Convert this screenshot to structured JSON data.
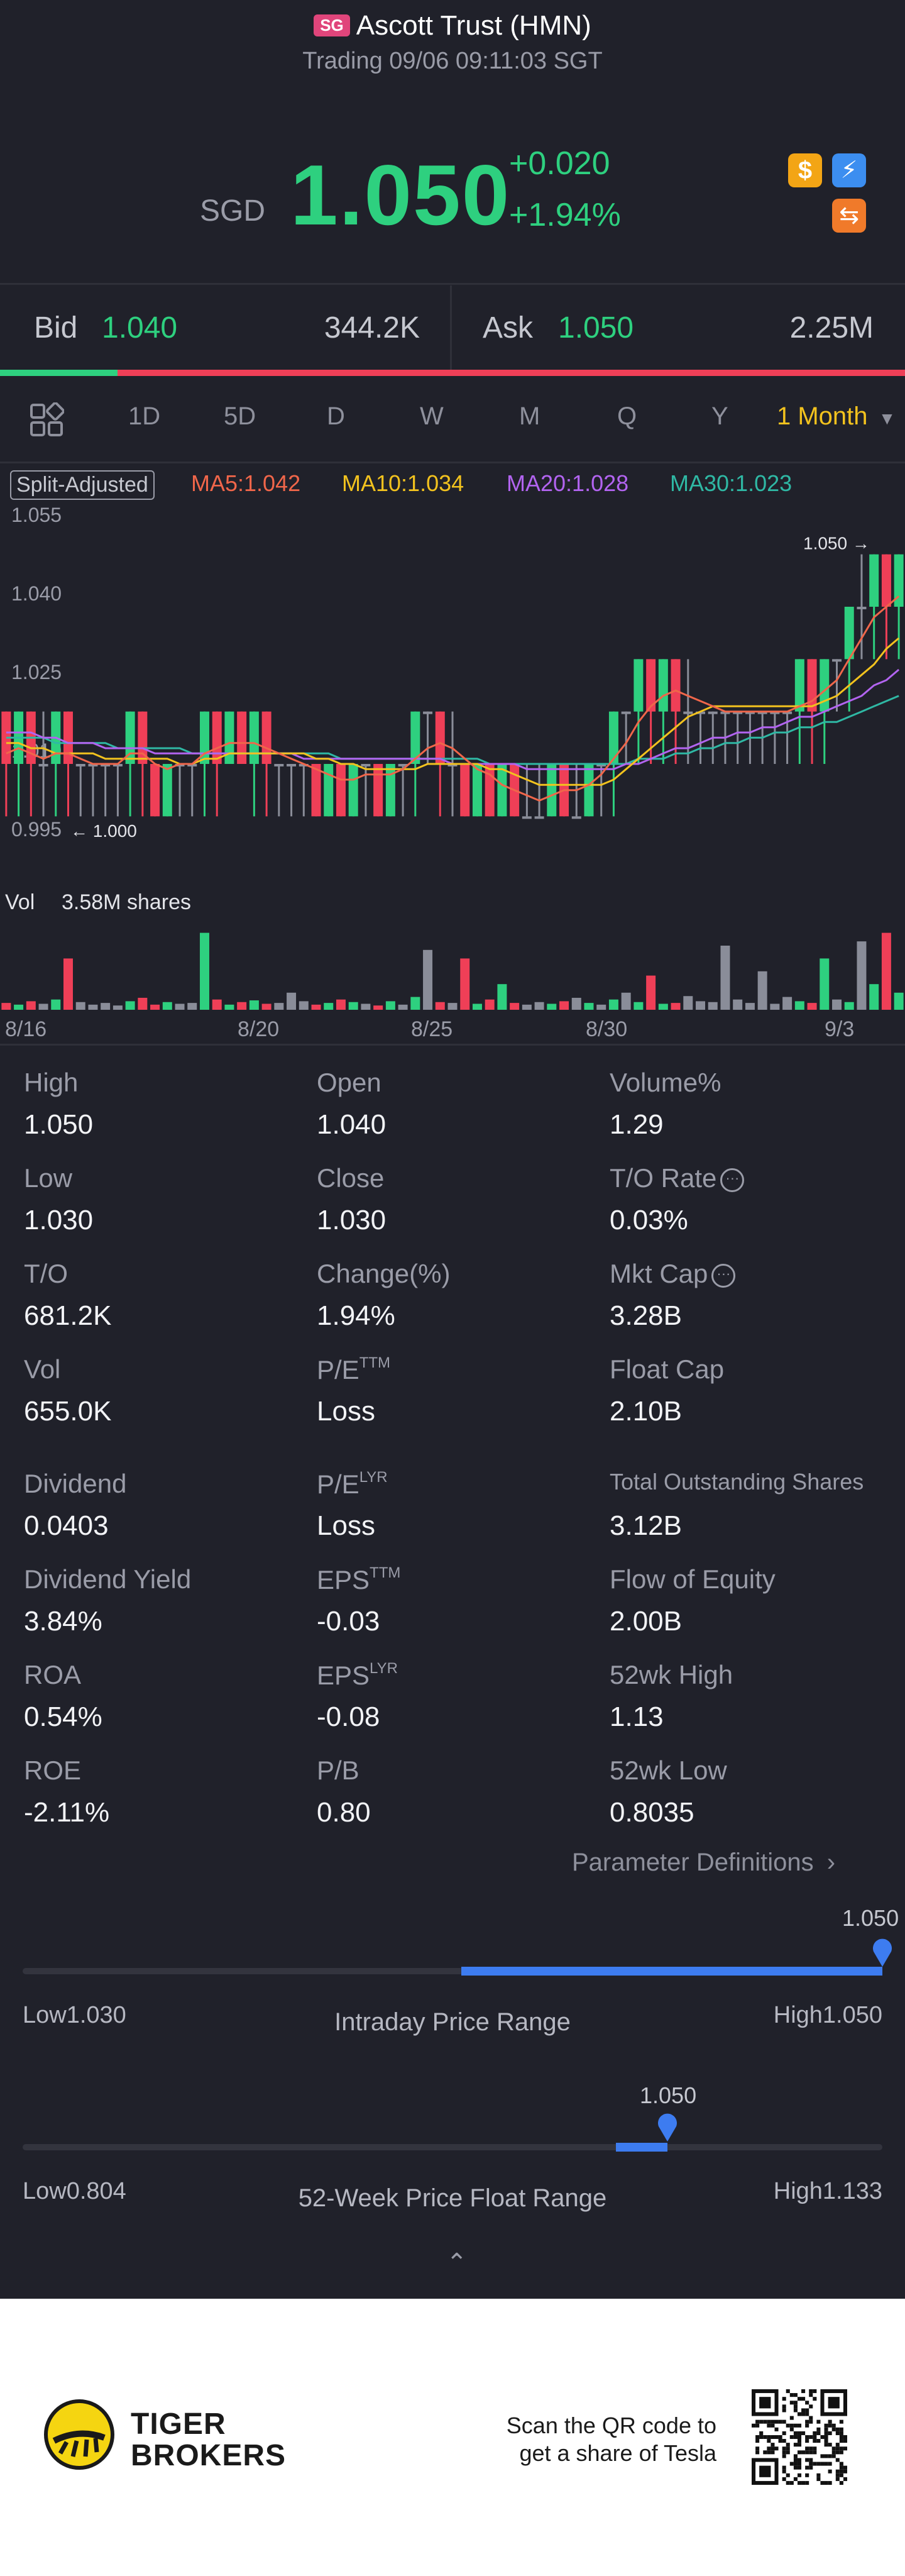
{
  "header": {
    "market_badge": "SG",
    "title": "Ascott Trust (HMN)",
    "subtitle": "Trading 09/06 09:11:03 SGT",
    "currency": "SGD",
    "price": "1.050",
    "change": "+0.020",
    "change_pct": "+1.94%",
    "icons": [
      "dollar-icon",
      "bolt-icon",
      "swap-icon"
    ]
  },
  "bid_ask": {
    "bid_label": "Bid",
    "bid_price": "1.040",
    "bid_qty": "344.2K",
    "ask_label": "Ask",
    "ask_price": "1.050",
    "ask_qty": "2.25M",
    "bid_share": 0.13
  },
  "tabs": {
    "items": [
      "1D",
      "5D",
      "D",
      "W",
      "M",
      "Q",
      "Y"
    ],
    "active": "1 Month"
  },
  "indicators": {
    "split": "Split-Adjusted",
    "ma5": "MA5:1.042",
    "ma10": "MA10:1.034",
    "ma20": "MA20:1.028",
    "ma30": "MA30:1.023"
  },
  "colors": {
    "up": "#2ed07f",
    "down": "#ef3f57",
    "neutral": "#8a8d99",
    "ma5": "#f0664a",
    "ma10": "#f2c21e",
    "ma20": "#b264f0",
    "ma30": "#2fb8a4",
    "accent": "#3d7cf0",
    "tab_active": "#f2c21e"
  },
  "chart_data": {
    "type": "candlestick",
    "y_ticks": [
      "1.055",
      "1.040",
      "1.025",
      "1.010",
      "0.995"
    ],
    "ylim": [
      0.995,
      1.055
    ],
    "x_ticks": [
      "8/16",
      "8/20",
      "8/25",
      "8/30",
      "9/3"
    ],
    "last_price_label": "1.050",
    "low_marker_label": "1.000",
    "volume_label": "Vol",
    "volume_value": "3.58M shares",
    "candles": [
      [
        1.02,
        1.01,
        1.0,
        1.02
      ],
      [
        1.01,
        1.02,
        1.0,
        1.02
      ],
      [
        1.02,
        1.01,
        1.0,
        1.02
      ],
      [
        1.01,
        1.01,
        1.0,
        1.02
      ],
      [
        1.01,
        1.02,
        1.0,
        1.02
      ],
      [
        1.02,
        1.01,
        1.0,
        1.02
      ],
      [
        1.01,
        1.01,
        1.0,
        1.01
      ],
      [
        1.01,
        1.01,
        1.0,
        1.01
      ],
      [
        1.01,
        1.01,
        1.0,
        1.01
      ],
      [
        1.01,
        1.01,
        1.0,
        1.01
      ],
      [
        1.01,
        1.02,
        1.0,
        1.02
      ],
      [
        1.02,
        1.01,
        1.0,
        1.02
      ],
      [
        1.01,
        1.0,
        1.0,
        1.01
      ],
      [
        1.0,
        1.01,
        1.0,
        1.01
      ],
      [
        1.01,
        1.01,
        1.0,
        1.01
      ],
      [
        1.01,
        1.01,
        1.0,
        1.01
      ],
      [
        1.01,
        1.02,
        1.0,
        1.02
      ],
      [
        1.02,
        1.01,
        1.0,
        1.02
      ],
      [
        1.01,
        1.02,
        1.01,
        1.02
      ],
      [
        1.02,
        1.01,
        1.01,
        1.02
      ],
      [
        1.01,
        1.02,
        1.0,
        1.02
      ],
      [
        1.02,
        1.01,
        1.0,
        1.02
      ],
      [
        1.01,
        1.01,
        1.0,
        1.01
      ],
      [
        1.01,
        1.01,
        1.0,
        1.01
      ],
      [
        1.01,
        1.01,
        1.0,
        1.01
      ],
      [
        1.01,
        1.0,
        1.0,
        1.01
      ],
      [
        1.0,
        1.01,
        1.0,
        1.01
      ],
      [
        1.01,
        1.0,
        1.0,
        1.01
      ],
      [
        1.0,
        1.01,
        1.0,
        1.01
      ],
      [
        1.01,
        1.01,
        1.0,
        1.01
      ],
      [
        1.01,
        1.0,
        1.0,
        1.01
      ],
      [
        1.0,
        1.01,
        1.0,
        1.01
      ],
      [
        1.01,
        1.01,
        1.0,
        1.01
      ],
      [
        1.01,
        1.02,
        1.0,
        1.02
      ],
      [
        1.02,
        1.02,
        1.01,
        1.02
      ],
      [
        1.02,
        1.01,
        1.0,
        1.02
      ],
      [
        1.01,
        1.01,
        1.0,
        1.02
      ],
      [
        1.01,
        1.0,
        1.0,
        1.01
      ],
      [
        1.0,
        1.01,
        1.0,
        1.01
      ],
      [
        1.01,
        1.0,
        1.0,
        1.01
      ],
      [
        1.0,
        1.01,
        1.0,
        1.01
      ],
      [
        1.01,
        1.0,
        1.0,
        1.01
      ],
      [
        1.0,
        1.0,
        1.0,
        1.01
      ],
      [
        1.0,
        1.0,
        1.0,
        1.01
      ],
      [
        1.0,
        1.01,
        1.0,
        1.01
      ],
      [
        1.01,
        1.0,
        1.0,
        1.01
      ],
      [
        1.0,
        1.0,
        1.0,
        1.01
      ],
      [
        1.0,
        1.01,
        1.0,
        1.01
      ],
      [
        1.01,
        1.01,
        1.0,
        1.01
      ],
      [
        1.01,
        1.02,
        1.0,
        1.02
      ],
      [
        1.02,
        1.02,
        1.01,
        1.02
      ],
      [
        1.02,
        1.03,
        1.01,
        1.03
      ],
      [
        1.03,
        1.02,
        1.01,
        1.03
      ],
      [
        1.02,
        1.03,
        1.01,
        1.03
      ],
      [
        1.03,
        1.02,
        1.01,
        1.03
      ],
      [
        1.02,
        1.02,
        1.01,
        1.03
      ],
      [
        1.02,
        1.02,
        1.01,
        1.02
      ],
      [
        1.02,
        1.02,
        1.01,
        1.02
      ],
      [
        1.02,
        1.02,
        1.01,
        1.02
      ],
      [
        1.02,
        1.02,
        1.01,
        1.02
      ],
      [
        1.02,
        1.02,
        1.01,
        1.02
      ],
      [
        1.02,
        1.02,
        1.01,
        1.02
      ],
      [
        1.02,
        1.02,
        1.01,
        1.02
      ],
      [
        1.02,
        1.02,
        1.01,
        1.02
      ],
      [
        1.02,
        1.03,
        1.01,
        1.03
      ],
      [
        1.03,
        1.02,
        1.01,
        1.03
      ],
      [
        1.02,
        1.03,
        1.01,
        1.03
      ],
      [
        1.03,
        1.03,
        1.02,
        1.03
      ],
      [
        1.03,
        1.04,
        1.02,
        1.04
      ],
      [
        1.04,
        1.04,
        1.03,
        1.05
      ],
      [
        1.04,
        1.05,
        1.03,
        1.05
      ],
      [
        1.05,
        1.04,
        1.03,
        1.05
      ],
      [
        1.04,
        1.05,
        1.03,
        1.05
      ]
    ],
    "ma5": [
      1.012,
      1.013,
      1.012,
      1.011,
      1.012,
      1.012,
      1.011,
      1.01,
      1.01,
      1.01,
      1.012,
      1.012,
      1.01,
      1.009,
      1.01,
      1.01,
      1.012,
      1.013,
      1.014,
      1.014,
      1.014,
      1.013,
      1.012,
      1.011,
      1.01,
      1.009,
      1.008,
      1.007,
      1.007,
      1.008,
      1.008,
      1.008,
      1.009,
      1.011,
      1.013,
      1.014,
      1.013,
      1.011,
      1.009,
      1.008,
      1.006,
      1.005,
      1.004,
      1.003,
      1.004,
      1.005,
      1.005,
      1.006,
      1.008,
      1.011,
      1.014,
      1.018,
      1.021,
      1.023,
      1.024,
      1.023,
      1.022,
      1.021,
      1.02,
      1.02,
      1.02,
      1.02,
      1.02,
      1.02,
      1.021,
      1.022,
      1.024,
      1.026,
      1.03,
      1.034,
      1.038,
      1.04,
      1.042
    ],
    "ma10": [
      1.014,
      1.014,
      1.013,
      1.013,
      1.012,
      1.012,
      1.012,
      1.012,
      1.011,
      1.011,
      1.011,
      1.011,
      1.011,
      1.011,
      1.01,
      1.01,
      1.011,
      1.011,
      1.012,
      1.012,
      1.012,
      1.012,
      1.012,
      1.012,
      1.012,
      1.011,
      1.011,
      1.01,
      1.01,
      1.009,
      1.009,
      1.009,
      1.009,
      1.009,
      1.01,
      1.01,
      1.01,
      1.01,
      1.01,
      1.009,
      1.009,
      1.008,
      1.007,
      1.006,
      1.006,
      1.006,
      1.006,
      1.006,
      1.006,
      1.007,
      1.009,
      1.011,
      1.013,
      1.015,
      1.017,
      1.019,
      1.02,
      1.021,
      1.021,
      1.021,
      1.021,
      1.021,
      1.021,
      1.021,
      1.021,
      1.021,
      1.022,
      1.023,
      1.025,
      1.027,
      1.029,
      1.032,
      1.034
    ],
    "ma20": [
      1.016,
      1.016,
      1.016,
      1.015,
      1.015,
      1.014,
      1.014,
      1.014,
      1.013,
      1.013,
      1.013,
      1.013,
      1.012,
      1.012,
      1.012,
      1.012,
      1.012,
      1.012,
      1.012,
      1.012,
      1.012,
      1.012,
      1.012,
      1.012,
      1.011,
      1.011,
      1.011,
      1.011,
      1.011,
      1.011,
      1.011,
      1.011,
      1.011,
      1.011,
      1.011,
      1.011,
      1.01,
      1.01,
      1.01,
      1.01,
      1.01,
      1.01,
      1.009,
      1.009,
      1.009,
      1.009,
      1.009,
      1.009,
      1.009,
      1.009,
      1.01,
      1.01,
      1.011,
      1.012,
      1.013,
      1.013,
      1.014,
      1.015,
      1.015,
      1.016,
      1.016,
      1.017,
      1.017,
      1.018,
      1.019,
      1.019,
      1.02,
      1.021,
      1.022,
      1.023,
      1.025,
      1.026,
      1.028
    ],
    "ma30": [
      1.015,
      1.015,
      1.015,
      1.015,
      1.014,
      1.014,
      1.014,
      1.014,
      1.014,
      1.013,
      1.013,
      1.013,
      1.013,
      1.013,
      1.013,
      1.012,
      1.012,
      1.012,
      1.012,
      1.012,
      1.012,
      1.012,
      1.012,
      1.012,
      1.012,
      1.012,
      1.012,
      1.011,
      1.011,
      1.011,
      1.011,
      1.011,
      1.011,
      1.011,
      1.011,
      1.011,
      1.011,
      1.011,
      1.011,
      1.01,
      1.01,
      1.01,
      1.01,
      1.01,
      1.01,
      1.01,
      1.01,
      1.01,
      1.01,
      1.01,
      1.01,
      1.011,
      1.011,
      1.011,
      1.012,
      1.012,
      1.013,
      1.013,
      1.014,
      1.014,
      1.015,
      1.015,
      1.016,
      1.016,
      1.017,
      1.017,
      1.018,
      1.018,
      1.019,
      1.02,
      1.021,
      1.022,
      1.023
    ],
    "volumes": [
      8,
      6,
      10,
      7,
      12,
      60,
      9,
      6,
      8,
      5,
      10,
      14,
      6,
      9,
      7,
      8,
      90,
      12,
      6,
      9,
      11,
      7,
      8,
      20,
      10,
      6,
      8,
      12,
      9,
      7,
      5,
      10,
      6,
      15,
      70,
      9,
      8,
      60,
      7,
      12,
      30,
      8,
      6,
      9,
      7,
      10,
      14,
      8,
      6,
      12,
      20,
      9,
      40,
      7,
      8,
      16,
      10,
      9,
      75,
      12,
      8,
      45,
      7,
      15,
      10,
      8,
      60,
      12,
      9,
      80,
      30,
      90,
      20
    ],
    "vol_ylim": [
      0,
      100
    ]
  },
  "stats": {
    "col1": [
      {
        "label": "High",
        "value": "1.050"
      },
      {
        "label": "Low",
        "value": "1.030"
      },
      {
        "label": "T/O",
        "value": "681.2K"
      },
      {
        "label": "Vol",
        "value": "655.0K"
      },
      {
        "label": "Dividend",
        "value": "0.0403"
      },
      {
        "label": "Dividend Yield",
        "value": "3.84%"
      },
      {
        "label": "ROA",
        "value": "0.54%"
      },
      {
        "label": "ROE",
        "value": "-2.11%"
      }
    ],
    "col2": [
      {
        "label": "Open",
        "sup": "",
        "value": "1.040"
      },
      {
        "label": "Close",
        "sup": "",
        "value": "1.030"
      },
      {
        "label": "Change(%)",
        "sup": "",
        "value": "1.94%"
      },
      {
        "label": "P/E",
        "sup": "TTM",
        "value": "Loss"
      },
      {
        "label": "P/E",
        "sup": "LYR",
        "value": "Loss"
      },
      {
        "label": "EPS",
        "sup": "TTM",
        "value": "-0.03"
      },
      {
        "label": "EPS",
        "sup": "LYR",
        "value": "-0.08"
      },
      {
        "label": "P/B",
        "sup": "",
        "value": "0.80"
      }
    ],
    "col3": [
      {
        "label": "Volume%",
        "value": "1.29",
        "info": false
      },
      {
        "label": "T/O Rate",
        "value": "0.03%",
        "info": true
      },
      {
        "label": "Mkt Cap",
        "value": "3.28B",
        "info": true
      },
      {
        "label": "Float Cap",
        "value": "2.10B",
        "info": false
      },
      {
        "label": "Total Outstanding Shares",
        "value": "3.12B",
        "info": false
      },
      {
        "label": "Flow of Equity",
        "value": "2.00B",
        "info": false
      },
      {
        "label": "52wk High",
        "value": "1.13",
        "info": false
      },
      {
        "label": "52wk Low",
        "value": "0.8035",
        "info": false
      }
    ],
    "param_link": "Parameter Definitions"
  },
  "ranges": {
    "intraday": {
      "title": "Intraday Price Range",
      "low": "Low1.030",
      "high": "High1.050",
      "current": "1.050",
      "position": 1.0,
      "fill_start": 0.51
    },
    "week52": {
      "title": "52-Week Price Float Range",
      "low": "Low0.804",
      "high": "High1.133",
      "current": "1.050",
      "position": 0.75,
      "fill_start": 0.69
    }
  },
  "footer": {
    "brand_line1": "TIGER",
    "brand_line2": "BROKERS",
    "scan_line1": "Scan the QR code to",
    "scan_line2": "get a share of Tesla"
  }
}
